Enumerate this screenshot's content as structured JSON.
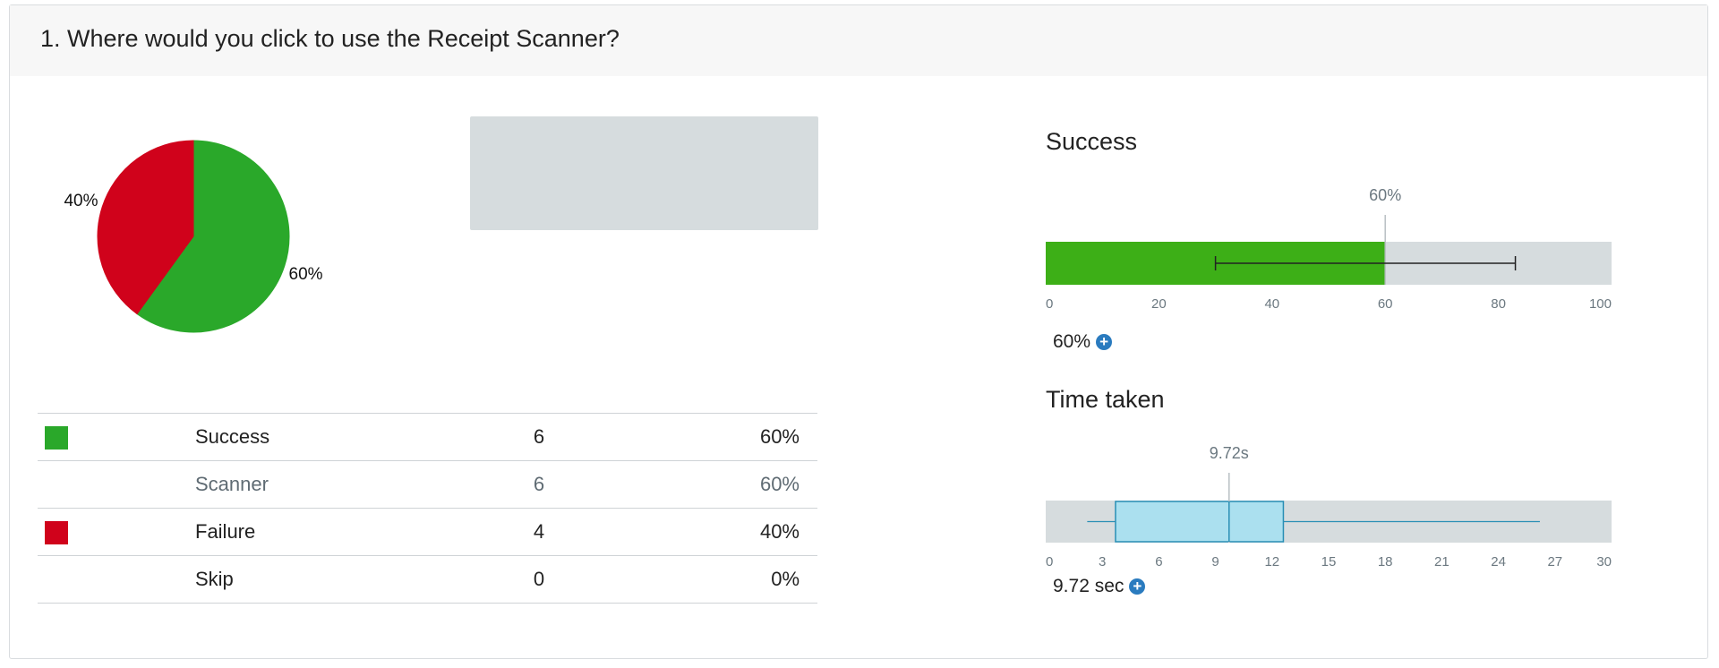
{
  "question": "1. Where would you click to use the Receipt Scanner?",
  "pie": {
    "slices": [
      {
        "name": "Success",
        "value": 60,
        "label": "60%",
        "color": "#2aa82a"
      },
      {
        "name": "Failure",
        "value": 40,
        "label": "40%",
        "color": "#d0021b"
      }
    ]
  },
  "table": {
    "rows": [
      {
        "label": "Success",
        "count": "6",
        "pct": "60%",
        "color": "#2aa82a",
        "muted": false
      },
      {
        "label": "Scanner",
        "count": "6",
        "pct": "60%",
        "color": "",
        "muted": true
      },
      {
        "label": "Failure",
        "count": "4",
        "pct": "40%",
        "color": "#d0021b",
        "muted": false
      },
      {
        "label": "Skip",
        "count": "0",
        "pct": "0%",
        "color": "",
        "muted": false
      }
    ]
  },
  "success": {
    "title": "Success",
    "marker_label": "60%",
    "stat": "60%",
    "colors": {
      "fill": "#3daf17",
      "track": "#d6dcde"
    }
  },
  "time": {
    "title": "Time taken",
    "marker_label": "9.72s",
    "stat": "9.72 sec",
    "colors": {
      "box": "#abe0ef",
      "stroke": "#2a8fb5",
      "track": "#d6dcde"
    }
  },
  "chart_data": [
    {
      "type": "pie",
      "title": "",
      "categories": [
        "Success",
        "Failure"
      ],
      "values": [
        60,
        40
      ],
      "labels": [
        "60%",
        "40%"
      ]
    },
    {
      "type": "bar",
      "title": "Success",
      "value": 60,
      "error_range": [
        30,
        83
      ],
      "xlim": [
        0,
        100
      ],
      "ticks": [
        "0",
        "20",
        "40",
        "60",
        "80",
        "100"
      ],
      "tick_values": [
        0,
        20,
        40,
        60,
        80,
        100
      ]
    },
    {
      "type": "boxplot",
      "title": "Time taken",
      "median": 9.72,
      "q1": 3.7,
      "q3": 12.6,
      "whisker_low": 2.2,
      "whisker_high": 26.2,
      "xlim": [
        0,
        30
      ],
      "ticks": [
        "0",
        "3",
        "6",
        "9",
        "12",
        "15",
        "18",
        "21",
        "24",
        "27",
        "30"
      ],
      "tick_values": [
        0,
        3,
        6,
        9,
        12,
        15,
        18,
        21,
        24,
        27,
        30
      ]
    }
  ]
}
